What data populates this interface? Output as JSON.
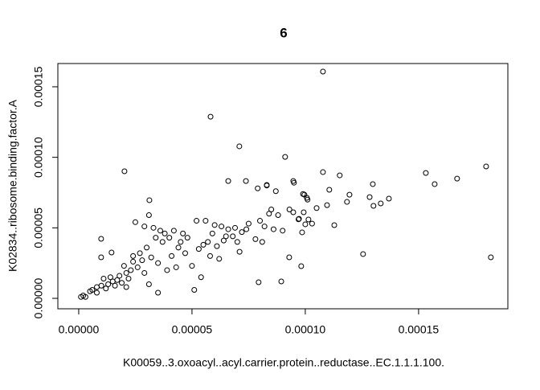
{
  "chart_data": {
    "type": "scatter",
    "title": "6",
    "x_label": "K00059..3.oxoacyl..acyl.carrier.protein..reductase..EC.1.1.1.100.",
    "y_label": "K02834..ribosome.binding.factor.A",
    "color": "#000000",
    "xlim": [
      -9.2e-06,
      0.0001894
    ],
    "ylim": [
      -7.4e-06,
      0.0001665
    ],
    "xticks": [
      {
        "value": 0,
        "label": "0.00000"
      },
      {
        "value": 5e-05,
        "label": "0.00005"
      },
      {
        "value": 0.0001,
        "label": "0.00010"
      },
      {
        "value": 0.00015,
        "label": "0.00015"
      }
    ],
    "yticks": [
      {
        "value": 0,
        "label": "0.00000"
      },
      {
        "value": 5e-05,
        "label": "0.00005"
      },
      {
        "value": 0.0001,
        "label": "0.00010"
      },
      {
        "value": 0.00015,
        "label": "0.00015"
      }
    ],
    "x": [
      0.0001078,
      5.82e-05,
      7.09e-05,
      9.11e-05,
      2.02e-05,
      0.0001078,
      0.0001532,
      0.0001798,
      0.000167,
      0.0001571,
      0.0001819,
      0.0001255,
      7.94e-05,
      6.6e-05,
      7.38e-05,
      8.3e-05,
      9.47e-05,
      0.0001152,
      0.0001298,
      0.0001106,
      9.96e-05,
      0.0001007,
      0.0001195,
      0.0001284,
      0.0001369,
      0.0001333,
      0.0001301,
      0.0001184,
      0.0001096,
      9.47e-05,
      9.93e-05,
      9.72e-05,
      0.0001014,
      0.0001128,
      0.0001,
      9.86e-05,
      9.29e-05,
      9.82e-05,
      8.94e-05,
      3.12e-05,
      9.9e-06,
      1.45e-05,
      9.9e-06,
      1e-06,
      2e-06,
      3e-06,
      5e-06,
      6e-06,
      8e-06,
      8e-06,
      1e-05,
      1.1e-05,
      1.2e-05,
      1.3e-05,
      1.4e-05,
      1.5e-05,
      1.6e-05,
      1.7e-05,
      1.8e-05,
      1.9e-05,
      2e-05,
      2.1e-05,
      2.1e-05,
      2.2e-05,
      2.3e-05,
      2.4e-05,
      2.4e-05,
      2.5e-05,
      2.6e-05,
      2.7e-05,
      2.8e-05,
      2.9e-05,
      2.9e-05,
      3e-05,
      3.1e-05,
      3.1e-05,
      3.2e-05,
      3.3e-05,
      3.4e-05,
      3.5e-05,
      3.5e-05,
      3.6e-05,
      3.7e-05,
      3.8e-05,
      3.9e-05,
      4e-05,
      4.1e-05,
      4.2e-05,
      4.3e-05,
      4.4e-05,
      4.5e-05,
      4.6e-05,
      4.7e-05,
      4.8e-05,
      5e-05,
      5.1e-05,
      5.2e-05,
      5.3e-05,
      5.4e-05,
      5.5e-05,
      5.6e-05,
      5.7e-05,
      5.8e-05,
      5.9e-05,
      6e-05,
      6.1e-05,
      6.2e-05,
      6.3e-05,
      6.4e-05,
      6.5e-05,
      6.6e-05,
      6.8e-05,
      6.9e-05,
      7e-05,
      7.1e-05,
      7.2e-05,
      7.4e-05,
      7.5e-05,
      7.8e-05,
      7.9e-05,
      8e-05,
      8.1e-05,
      8.2e-05,
      8.3e-05,
      8.4e-05,
      8.5e-05,
      8.6e-05,
      8.7e-05,
      8.8e-05,
      9e-05,
      9.3e-05,
      9.5e-05,
      9.7e-05,
      9.9e-05,
      0.000101,
      0.000103,
      0.000105
    ],
    "values": [
      0.0001608,
      0.0001288,
      0.0001078,
      0.0001003,
      9.01e-05,
      8.95e-05,
      8.89e-05,
      9.35e-05,
      8.49e-05,
      8.1e-05,
      2.91e-05,
      3.14e-05,
      1.14e-05,
      8.32e-05,
      8.32e-05,
      8.04e-05,
      8.32e-05,
      8.72e-05,
      8.1e-05,
      7.7e-05,
      7.35e-05,
      7.13e-05,
      7.35e-05,
      7.18e-05,
      7.07e-05,
      6.73e-05,
      6.56e-05,
      6.84e-05,
      6.61e-05,
      6.1e-05,
      6.1e-05,
      5.64e-05,
      5.59e-05,
      5.19e-05,
      5.25e-05,
      4.68e-05,
      2.91e-05,
      2.28e-05,
      1.2e-05,
      6.96e-05,
      4.22e-05,
      3.25e-05,
      2.91e-05,
      1e-06,
      2e-06,
      1e-06,
      5e-06,
      6e-06,
      4e-06,
      8e-06,
      9e-06,
      1.4e-05,
      7e-06,
      1e-05,
      1.5e-05,
      1.2e-05,
      9e-06,
      1.3e-05,
      1.6e-05,
      1.1e-05,
      2.3e-05,
      1.8e-05,
      8e-06,
      1.4e-05,
      2e-05,
      3e-05,
      2.6e-05,
      5.4e-05,
      2.2e-05,
      3.2e-05,
      2.7e-05,
      5.1e-05,
      1.8e-05,
      3.6e-05,
      5.9e-05,
      1e-05,
      2.9e-05,
      5e-05,
      4.3e-05,
      2.5e-05,
      4e-06,
      4.8e-05,
      4e-05,
      4.6e-05,
      2e-05,
      4.3e-05,
      3e-05,
      4.8e-05,
      2.2e-05,
      3.6e-05,
      4e-05,
      4.6e-05,
      3.2e-05,
      4.3e-05,
      2.3e-05,
      6e-06,
      5.5e-05,
      3.5e-05,
      1.5e-05,
      3.8e-05,
      5.5e-05,
      4e-05,
      3e-05,
      4.6e-05,
      5.2e-05,
      3.7e-05,
      2.8e-05,
      5.1e-05,
      4.1e-05,
      4.4e-05,
      4.9e-05,
      4.4e-05,
      5e-05,
      4e-05,
      3.3e-05,
      4.7e-05,
      4.9e-05,
      5.3e-05,
      4.2e-05,
      7.8e-05,
      5.5e-05,
      4e-05,
      5.1e-05,
      8e-05,
      6e-05,
      6.3e-05,
      4.9e-05,
      7.6e-05,
      5.9e-05,
      4.8e-05,
      6.3e-05,
      8.2e-05,
      5.6e-05,
      7.4e-05,
      7e-05,
      5.3e-05,
      6.4e-05
    ]
  }
}
